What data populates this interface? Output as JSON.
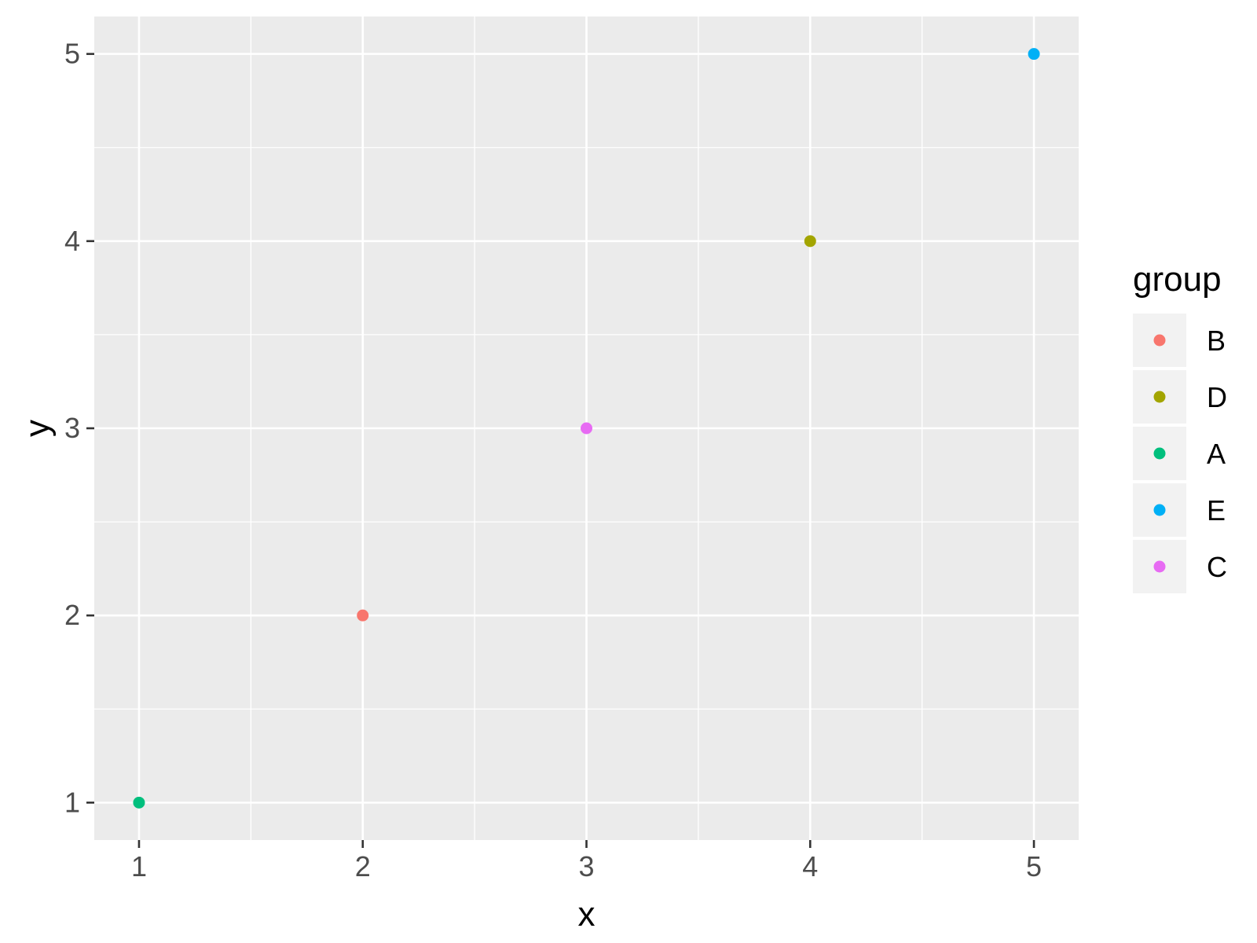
{
  "chart_data": {
    "type": "scatter",
    "xlabel": "x",
    "ylabel": "y",
    "xlim": [
      0.8,
      5.2
    ],
    "ylim": [
      0.8,
      5.2
    ],
    "x_ticks": [
      "1",
      "2",
      "3",
      "4",
      "5"
    ],
    "y_ticks": [
      "1",
      "2",
      "3",
      "4",
      "5"
    ],
    "grid": true,
    "legend": {
      "title": "group",
      "position": "right",
      "entries": [
        {
          "label": "B",
          "color": "#F8766D"
        },
        {
          "label": "D",
          "color": "#A3A500"
        },
        {
          "label": "A",
          "color": "#00BF7D"
        },
        {
          "label": "E",
          "color": "#00B0F6"
        },
        {
          "label": "C",
          "color": "#E76BF3"
        }
      ]
    },
    "points": [
      {
        "x": 1,
        "y": 1,
        "group": "A",
        "color": "#00BF7D"
      },
      {
        "x": 2,
        "y": 2,
        "group": "B",
        "color": "#F8766D"
      },
      {
        "x": 3,
        "y": 3,
        "group": "C",
        "color": "#E76BF3"
      },
      {
        "x": 4,
        "y": 4,
        "group": "D",
        "color": "#A3A500"
      },
      {
        "x": 5,
        "y": 5,
        "group": "E",
        "color": "#00B0F6"
      }
    ],
    "colors": {
      "panel_background": "#EBEBEB",
      "grid": "#FFFFFF",
      "axis_text": "#4D4D4D",
      "tick": "#333333"
    }
  }
}
